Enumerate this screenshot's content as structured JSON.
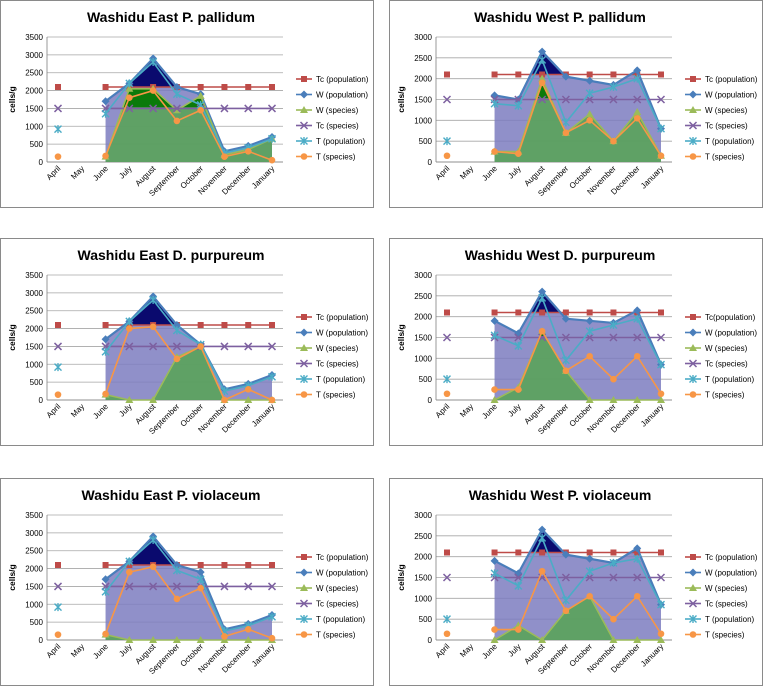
{
  "months": [
    "April",
    "May",
    "June",
    "July",
    "August",
    "September",
    "October",
    "November",
    "December",
    "January"
  ],
  "yaxis_label": "cells/g",
  "legend": [
    "Tc (population)",
    "W (population)",
    "W (species)",
    "Tc (species)",
    "T (population)",
    "T (species)"
  ],
  "colors": {
    "tc_pop": "#be4b48",
    "w_pop": "#4a7ebb",
    "w_sp": "#9bbb59",
    "tc_sp": "#7d60a0",
    "t_pop": "#4bacc6",
    "t_sp": "#f79646",
    "fill_w_pop": "#7c7cbf",
    "fill_dark": "#0a0a6e",
    "fill_sp": "#5aa35a",
    "fill_green_dark": "#0a7a0a"
  },
  "chart_data": [
    {
      "type": "line",
      "title": "Washidu East P. pallidum",
      "ylim": [
        0,
        3500
      ],
      "yticks": [
        0,
        500,
        1000,
        1500,
        2000,
        2500,
        3000,
        3500
      ],
      "categories": [
        "April",
        "May",
        "June",
        "July",
        "August",
        "September",
        "October",
        "November",
        "December",
        "January"
      ],
      "series": [
        {
          "name": "Tc (population)",
          "values": [
            2100,
            null,
            2100,
            2100,
            2100,
            2100,
            2100,
            2100,
            2100,
            2100
          ]
        },
        {
          "name": "W (population)",
          "values": [
            null,
            null,
            1700,
            2200,
            2900,
            2100,
            1900,
            300,
            450,
            700
          ]
        },
        {
          "name": "W (species)",
          "values": [
            null,
            null,
            150,
            2050,
            2050,
            1450,
            1850,
            200,
            350,
            650
          ]
        },
        {
          "name": "Tc (species)",
          "values": [
            1500,
            null,
            1500,
            1500,
            1500,
            1500,
            1500,
            1500,
            1500,
            1500
          ]
        },
        {
          "name": "T (population)",
          "values": [
            920,
            null,
            1350,
            2200,
            2800,
            1900,
            1600,
            250,
            400,
            650
          ]
        },
        {
          "name": "T (species)",
          "values": [
            150,
            null,
            170,
            1800,
            2000,
            1150,
            1450,
            150,
            300,
            50
          ]
        }
      ]
    },
    {
      "type": "line",
      "title": "Washidu West P. pallidum",
      "ylim": [
        0,
        3000
      ],
      "yticks": [
        0,
        500,
        1000,
        1500,
        2000,
        2500,
        3000
      ],
      "categories": [
        "April",
        "May",
        "June",
        "July",
        "August",
        "September",
        "October",
        "November",
        "December",
        "January"
      ],
      "series": [
        {
          "name": "Tc (population)",
          "values": [
            2100,
            null,
            2100,
            2100,
            2100,
            2100,
            2100,
            2100,
            2100,
            2100
          ]
        },
        {
          "name": "W (population)",
          "values": [
            null,
            null,
            1600,
            1500,
            2650,
            2050,
            1950,
            1850,
            2200,
            800
          ]
        },
        {
          "name": "W (species)",
          "values": [
            null,
            null,
            250,
            250,
            2000,
            700,
            1150,
            500,
            1200,
            150
          ]
        },
        {
          "name": "Tc (species)",
          "values": [
            1500,
            null,
            1500,
            1500,
            1500,
            1500,
            1500,
            1500,
            1500,
            1500
          ]
        },
        {
          "name": "T (population)",
          "values": [
            500,
            null,
            1400,
            1350,
            2450,
            950,
            1650,
            1800,
            2000,
            800
          ]
        },
        {
          "name": "T (species)",
          "values": [
            150,
            null,
            250,
            200,
            1900,
            700,
            1000,
            500,
            1050,
            150
          ]
        }
      ]
    },
    {
      "type": "line",
      "title": "Washidu East D. purpureum",
      "ylim": [
        0,
        3500
      ],
      "yticks": [
        0,
        500,
        1000,
        1500,
        2000,
        2500,
        3000,
        3500
      ],
      "categories": [
        "April",
        "May",
        "June",
        "July",
        "August",
        "September",
        "October",
        "November",
        "December",
        "January"
      ],
      "series": [
        {
          "name": "Tc (population)",
          "values": [
            2100,
            null,
            2100,
            2100,
            2100,
            2100,
            2100,
            2100,
            2100,
            2100
          ]
        },
        {
          "name": "W (population)",
          "values": [
            null,
            null,
            1700,
            2200,
            2900,
            2100,
            1550,
            300,
            450,
            700
          ]
        },
        {
          "name": "W (species)",
          "values": [
            null,
            null,
            150,
            0,
            0,
            1200,
            1500,
            0,
            0,
            0
          ]
        },
        {
          "name": "Tc (species)",
          "values": [
            1500,
            null,
            1500,
            1500,
            1500,
            1500,
            1500,
            1500,
            1500,
            1500
          ]
        },
        {
          "name": "T (population)",
          "values": [
            920,
            null,
            1350,
            2200,
            2800,
            1950,
            1550,
            250,
            400,
            650
          ]
        },
        {
          "name": "T (species)",
          "values": [
            150,
            null,
            170,
            2000,
            2050,
            1150,
            1500,
            0,
            300,
            0
          ]
        }
      ]
    },
    {
      "type": "line",
      "title": "Washidu West D. purpureum",
      "ylim": [
        0,
        3000
      ],
      "yticks": [
        0,
        500,
        1000,
        1500,
        2000,
        2500,
        3000
      ],
      "categories": [
        "April",
        "May",
        "June",
        "July",
        "August",
        "September",
        "October",
        "November",
        "December",
        "January"
      ],
      "series": [
        {
          "name": "Tc(population)",
          "values": [
            2100,
            null,
            2100,
            2100,
            2100,
            2100,
            2100,
            2100,
            2100,
            2100
          ]
        },
        {
          "name": "W (population)",
          "values": [
            null,
            null,
            1900,
            1600,
            2600,
            1950,
            1900,
            1850,
            2150,
            850
          ]
        },
        {
          "name": "W (species)",
          "values": [
            null,
            null,
            0,
            300,
            1650,
            700,
            0,
            0,
            0,
            0
          ]
        },
        {
          "name": "Tc (species)",
          "values": [
            1500,
            null,
            1500,
            1500,
            1500,
            1500,
            1500,
            1500,
            1500,
            1500
          ]
        },
        {
          "name": "T (population)",
          "values": [
            500,
            null,
            1550,
            1300,
            2450,
            950,
            1650,
            1800,
            1950,
            850
          ]
        },
        {
          "name": "T (species)",
          "values": [
            150,
            null,
            250,
            250,
            1650,
            700,
            1050,
            500,
            1050,
            150
          ]
        }
      ]
    },
    {
      "type": "line",
      "title": "Washidu East P. violaceum",
      "ylim": [
        0,
        3500
      ],
      "yticks": [
        0,
        500,
        1000,
        1500,
        2000,
        2500,
        3000,
        3500
      ],
      "categories": [
        "April",
        "May",
        "June",
        "July",
        "August",
        "September",
        "October",
        "November",
        "December",
        "January"
      ],
      "series": [
        {
          "name": "Tc (population)",
          "values": [
            2100,
            null,
            2100,
            2100,
            2100,
            2100,
            2100,
            2100,
            2100,
            2100
          ]
        },
        {
          "name": "W (population)",
          "values": [
            null,
            null,
            1700,
            2200,
            2900,
            2100,
            1900,
            300,
            450,
            700
          ]
        },
        {
          "name": "W (species)",
          "values": [
            null,
            null,
            150,
            0,
            0,
            0,
            0,
            0,
            0,
            0
          ]
        },
        {
          "name": "Tc (species)",
          "values": [
            1500,
            null,
            1500,
            1500,
            1500,
            1500,
            1500,
            1500,
            1500,
            1500
          ]
        },
        {
          "name": "T (population)",
          "values": [
            920,
            null,
            1350,
            2200,
            2800,
            1950,
            1700,
            250,
            400,
            650
          ]
        },
        {
          "name": "T (species)",
          "values": [
            150,
            null,
            170,
            1900,
            2050,
            1150,
            1450,
            100,
            300,
            50
          ]
        }
      ]
    },
    {
      "type": "line",
      "title": "Washidu West P. violaceum",
      "ylim": [
        0,
        3000
      ],
      "yticks": [
        0,
        500,
        1000,
        1500,
        2000,
        2500,
        3000
      ],
      "categories": [
        "April",
        "May",
        "June",
        "July",
        "August",
        "September",
        "October",
        "November",
        "December",
        "January"
      ],
      "series": [
        {
          "name": "Tc (population)",
          "values": [
            2100,
            null,
            2100,
            2100,
            2100,
            2100,
            2100,
            2100,
            2100,
            2100
          ]
        },
        {
          "name": "W (population)",
          "values": [
            null,
            null,
            1900,
            1600,
            2650,
            2050,
            1950,
            1850,
            2200,
            850
          ]
        },
        {
          "name": "W (species)",
          "values": [
            null,
            null,
            0,
            350,
            0,
            700,
            1050,
            0,
            0,
            0
          ]
        },
        {
          "name": "Tc (species)",
          "values": [
            1500,
            null,
            1500,
            1500,
            1500,
            1500,
            1500,
            1500,
            1500,
            1500
          ]
        },
        {
          "name": "T (population)",
          "values": [
            500,
            null,
            1600,
            1300,
            2450,
            950,
            1650,
            1850,
            1950,
            850
          ]
        },
        {
          "name": "T (species)",
          "values": [
            150,
            null,
            250,
            250,
            1650,
            700,
            1050,
            500,
            1050,
            150
          ]
        }
      ]
    }
  ]
}
